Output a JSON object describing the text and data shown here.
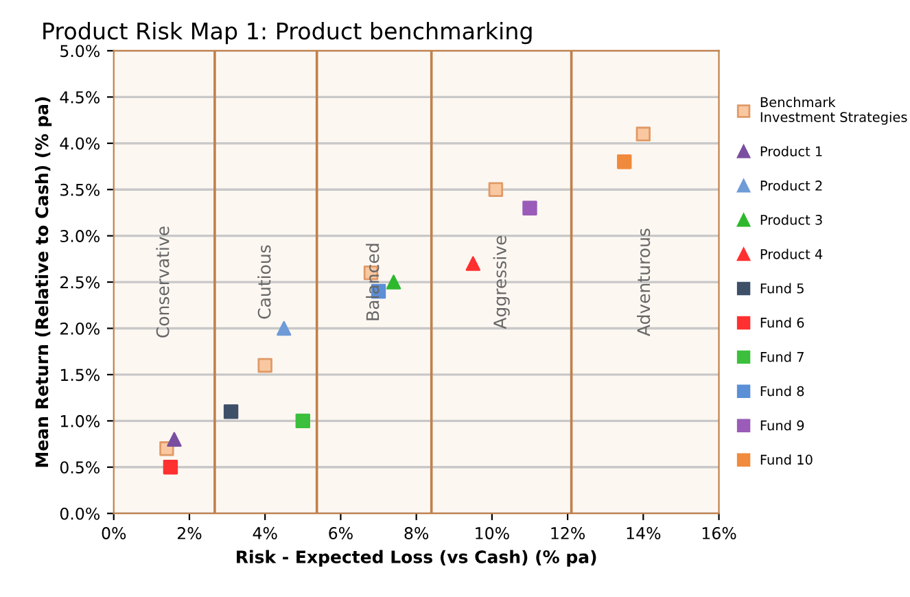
{
  "chart_data": {
    "type": "scatter",
    "title": "Product Risk Map 1: Product benchmarking",
    "xlabel": "Risk - Expected Loss (vs Cash) (% pa)",
    "ylabel": "Mean Return (Relative to Cash) (% pa)",
    "xlim": [
      0,
      16
    ],
    "ylim": [
      0,
      5
    ],
    "xticks": [
      {
        "value": 0,
        "label": "0%"
      },
      {
        "value": 2,
        "label": "2%"
      },
      {
        "value": 4,
        "label": "4%"
      },
      {
        "value": 6,
        "label": "6%"
      },
      {
        "value": 8,
        "label": "8%"
      },
      {
        "value": 10,
        "label": "10%"
      },
      {
        "value": 12,
        "label": "12%"
      },
      {
        "value": 14,
        "label": "14%"
      },
      {
        "value": 16,
        "label": "16%"
      }
    ],
    "yticks": [
      {
        "value": 0,
        "label": "0.0%"
      },
      {
        "value": 0.5,
        "label": "0.5%"
      },
      {
        "value": 1,
        "label": "1.0%"
      },
      {
        "value": 1.5,
        "label": "1.5%"
      },
      {
        "value": 2,
        "label": "2.0%"
      },
      {
        "value": 2.5,
        "label": "2.5%"
      },
      {
        "value": 3,
        "label": "3.0%"
      },
      {
        "value": 3.5,
        "label": "3.5%"
      },
      {
        "value": 4,
        "label": "4.0%"
      },
      {
        "value": 4.5,
        "label": "4.5%"
      },
      {
        "value": 5,
        "label": "5.0%"
      }
    ],
    "grid": "y",
    "legend": "right",
    "ref_lines": [
      {
        "axis": "x",
        "value": 2.67,
        "color": "#c0804a"
      },
      {
        "axis": "x",
        "value": 5.37,
        "color": "#c0804a"
      },
      {
        "axis": "x",
        "value": 8.4,
        "color": "#c0804a"
      },
      {
        "axis": "x",
        "value": 12.1,
        "color": "#c0804a"
      }
    ],
    "annotations": [
      "Conservative",
      "Cautious",
      "Balanced",
      "Aggressive",
      "Adventurous"
    ],
    "series": [
      {
        "name": "Benchmark\nInvestment Strategies",
        "color": "#fac8a0",
        "marker": "square",
        "x": [
          1.4,
          4.0,
          6.8,
          10.1,
          14.0
        ],
        "values": [
          0.7,
          1.6,
          2.6,
          3.5,
          4.1
        ]
      },
      {
        "name": "Product 1",
        "color": "#7a4fa0",
        "marker": "triangle",
        "x": [
          1.6
        ],
        "values": [
          0.8
        ]
      },
      {
        "name": "Product 2",
        "color": "#6f9bd8",
        "marker": "triangle",
        "x": [
          4.5
        ],
        "values": [
          2.0
        ]
      },
      {
        "name": "Product 3",
        "color": "#2eb82e",
        "marker": "triangle",
        "x": [
          7.4
        ],
        "values": [
          2.5
        ]
      },
      {
        "name": "Product 4",
        "color": "#ff3030",
        "marker": "triangle",
        "x": [
          9.5
        ],
        "values": [
          2.7
        ]
      },
      {
        "name": "Fund 5",
        "color": "#3d5068",
        "marker": "square",
        "x": [
          3.1
        ],
        "values": [
          1.1
        ]
      },
      {
        "name": "Fund 6",
        "color": "#ff3030",
        "marker": "square",
        "x": [
          1.5
        ],
        "values": [
          0.5
        ]
      },
      {
        "name": "Fund 7",
        "color": "#3cbf3c",
        "marker": "square",
        "x": [
          5.0
        ],
        "values": [
          1.0
        ]
      },
      {
        "name": "Fund 8",
        "color": "#5b8fd6",
        "marker": "square",
        "x": [
          7.0
        ],
        "values": [
          2.4
        ]
      },
      {
        "name": "Fund 9",
        "color": "#9a5cb8",
        "marker": "square",
        "x": [
          11.0
        ],
        "values": [
          3.3
        ]
      },
      {
        "name": "Fund 10",
        "color": "#f08a3c",
        "marker": "square",
        "x": [
          13.5
        ],
        "values": [
          3.8
        ]
      }
    ]
  }
}
